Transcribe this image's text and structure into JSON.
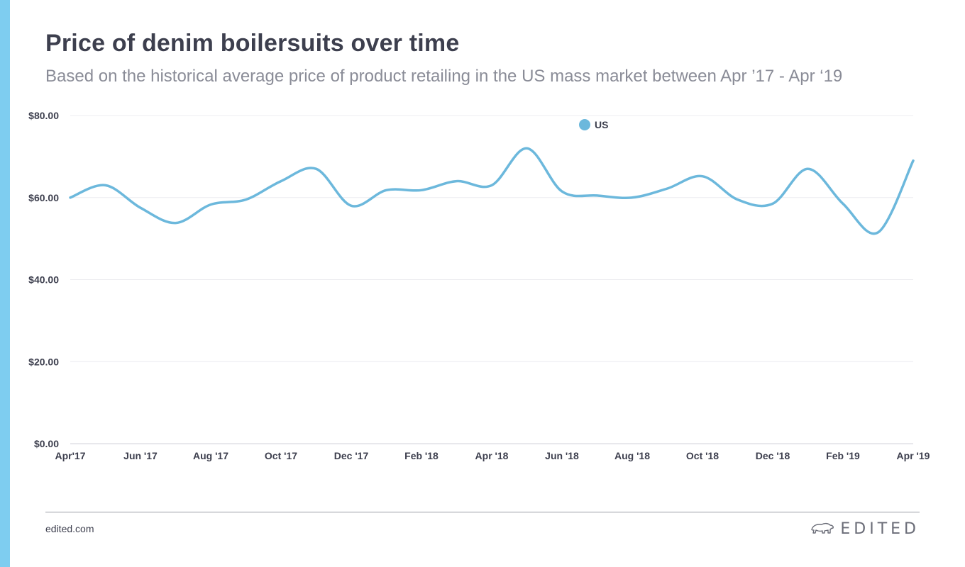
{
  "header": {
    "title": "Price of denim boilersuits over time",
    "subtitle": "Based on the historical average price of product retailing in the US mass market between Apr ’17 - Apr ‘19"
  },
  "footer": {
    "site": "edited.com",
    "brand": "EDITED",
    "brand_icon": "polar-bear-icon"
  },
  "colors": {
    "accent_bar": "#7ecdf0",
    "series": "#6cb8dc",
    "text_dark": "#3d3f4e",
    "text_muted": "#8a8c97"
  },
  "chart_data": {
    "type": "line",
    "title": "Price of denim boilersuits over time",
    "subtitle": "Based on the historical average price of product retailing in the US mass market between Apr ’17 - Apr ‘19",
    "ylim": [
      0,
      80
    ],
    "y_ticks": [
      "$0.00",
      "$20.00",
      "$40.00",
      "$60.00",
      "$80.00"
    ],
    "y_tick_values": [
      0,
      20,
      40,
      60,
      80
    ],
    "x_tick_labels": [
      "Apr'17",
      "Jun '17",
      "Aug '17",
      "Oct '17",
      "Dec '17",
      "Feb '18",
      "Apr '18",
      "Jun '18",
      "Aug '18",
      "Oct '18",
      "Dec '18",
      "Feb '19",
      "Apr '19"
    ],
    "grid": true,
    "legend_position": "top-center",
    "series": [
      {
        "name": "US",
        "color": "#6cb8dc",
        "x": [
          "Apr '17",
          "May '17",
          "Jun '17",
          "Jul '17",
          "Aug '17",
          "Sep '17",
          "Oct '17",
          "Nov '17",
          "Dec '17",
          "Jan '18",
          "Feb '18",
          "Mar '18",
          "Apr '18",
          "May '18",
          "Jun '18",
          "Jul '18",
          "Aug '18",
          "Sep '18",
          "Oct '18",
          "Nov '18",
          "Dec '18",
          "Jan '19",
          "Feb '19",
          "Mar '19",
          "Apr '19"
        ],
        "values": [
          60.0,
          63.0,
          57.5,
          53.8,
          58.3,
          59.5,
          64.0,
          67.0,
          58.0,
          61.8,
          61.8,
          64.0,
          63.0,
          72.0,
          61.5,
          60.5,
          60.0,
          62.2,
          65.2,
          59.5,
          58.5,
          67.0,
          58.5,
          51.5,
          69.0
        ]
      }
    ]
  }
}
